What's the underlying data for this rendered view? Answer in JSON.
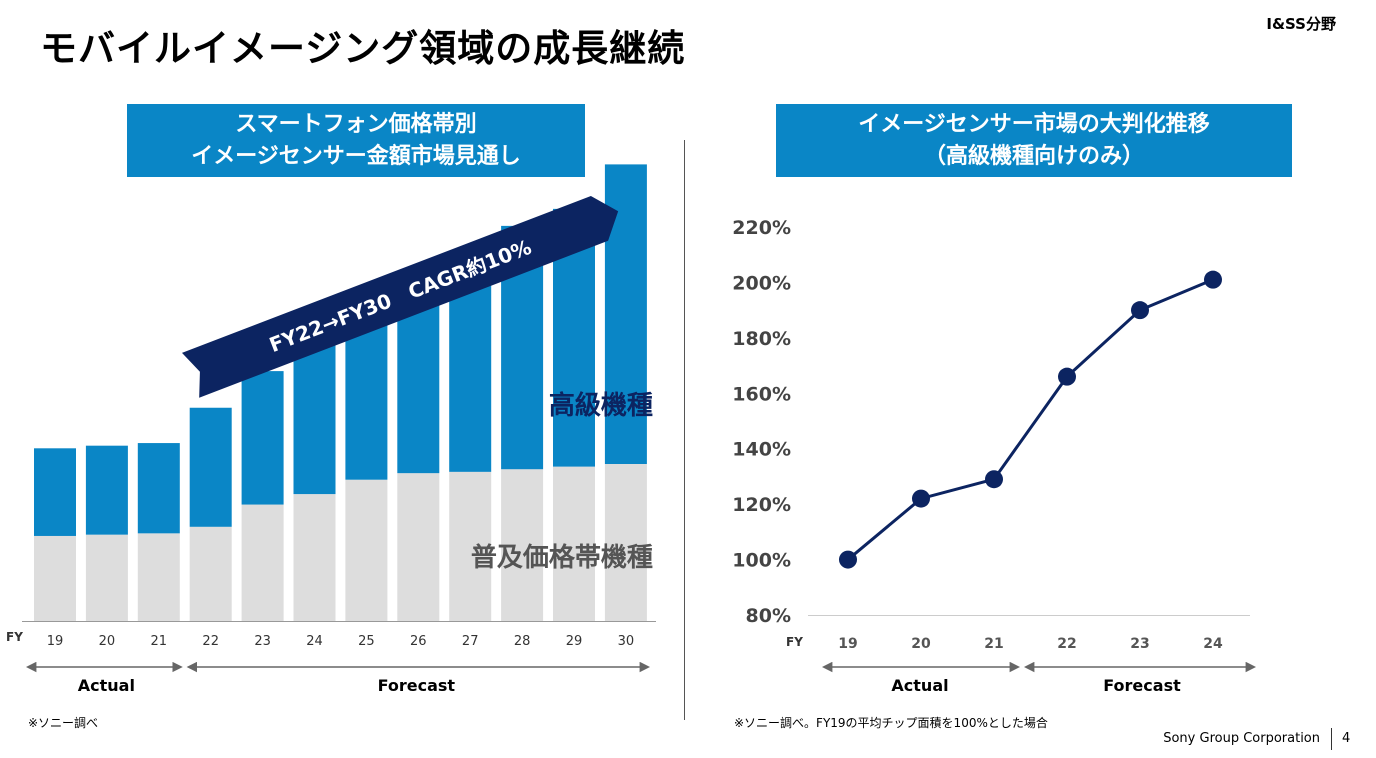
{
  "header": {
    "title": "モバイルイメージング領域の成長継続",
    "division": "I&SS分野"
  },
  "left_panel": {
    "title_line1": "スマートフォン価格帯別",
    "title_line2": "イメージセンサー金額市場見通し",
    "arrow_label": "FY22→FY30　CAGR約10%",
    "note": "※ソニー調べ"
  },
  "right_panel": {
    "title_line1": "イメージセンサー市場の大判化推移",
    "title_line2": "（高級機種向けのみ）",
    "note": "※ソニー調べ。FY19の平均チップ面積を100%とした場合"
  },
  "footer": {
    "company": "Sony Group Corporation",
    "page": "4"
  },
  "colors": {
    "bar_high": "#0a86c6",
    "bar_popular": "#dddddd",
    "navy": "#0c2461",
    "banner": "#0a86c6"
  },
  "chart_data": [
    {
      "type": "bar",
      "stacked": true,
      "title": "スマートフォン価格帯別 イメージセンサー金額市場見通し",
      "x_prefix": "FY",
      "categories": [
        "19",
        "20",
        "21",
        "22",
        "23",
        "24",
        "25",
        "26",
        "27",
        "28",
        "29",
        "30"
      ],
      "series": [
        {
          "name": "普及価格帯機種",
          "values": [
            65,
            66,
            67,
            72,
            89,
            97,
            108,
            113,
            114,
            116,
            118,
            120
          ]
        },
        {
          "name": "高級機種",
          "values": [
            67,
            68,
            69,
            91,
            102,
            115,
            135,
            146,
            149,
            186,
            197,
            229
          ]
        }
      ],
      "ylim": [
        0,
        360
      ],
      "period_labels": {
        "actual": "Actual",
        "forecast": "Forecast"
      },
      "actual_count": 3
    },
    {
      "type": "line",
      "title": "イメージセンサー市場の大判化推移（高級機種向けのみ）",
      "x_prefix": "FY",
      "categories": [
        "19",
        "20",
        "21",
        "22",
        "23",
        "24"
      ],
      "values": [
        100,
        122,
        129,
        166,
        190,
        201
      ],
      "y_ticks": [
        "80%",
        "100%",
        "120%",
        "140%",
        "160%",
        "180%",
        "200%",
        "220%"
      ],
      "ylim": [
        80,
        220
      ],
      "period_labels": {
        "actual": "Actual",
        "forecast": "Forecast"
      },
      "actual_count": 3
    }
  ]
}
